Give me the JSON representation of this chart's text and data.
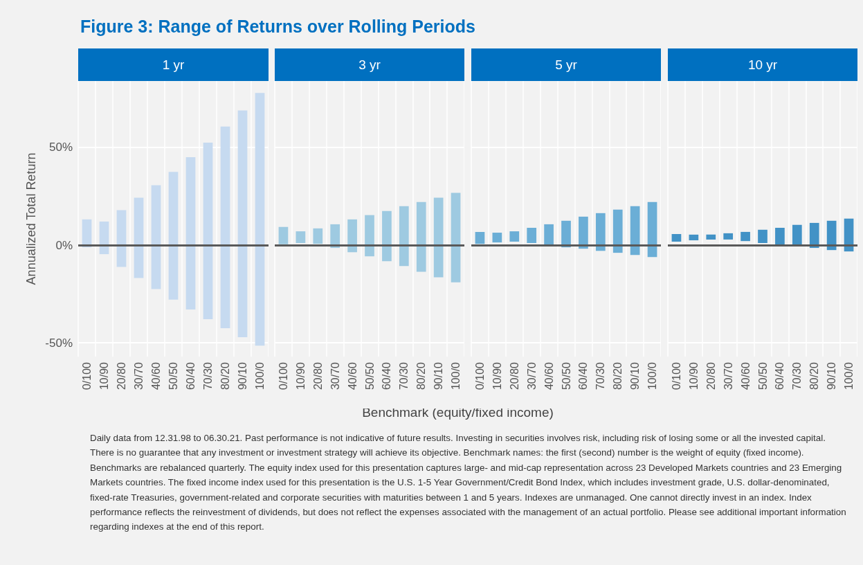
{
  "chart_data": [
    {
      "type": "bar",
      "title": "Figure 3: Range of Returns over Rolling Periods",
      "subtitle": "1 yr",
      "ylabel": "Annualized Total Return",
      "annotations": [
        "Daily data from 12.31.98 to 06.30.21. Past performance is not indicative of future results. Investing in securities involves risk, including risk of losing some or all the invested capital. There is no guarantee that any investment or investment strategy will achieve its objective. Benchmark names: the first (second) number is the weight of equity (fixed income). Benchmarks are rebalanced quarterly. The equity index used for this presentation captures large- and mid-cap representation across 23 Developed Markets countries and 23 Emerging Markets countries. The fixed income index used for this presentation is the U.S. 1-5 Year Government/Credit Bond Index, which includes investment grade, U.S. dollar-denominated, fixed-rate Treasuries, government-related and corporate securities with maturities between 1 and 5 years. Indexes are unmanaged. One cannot directly invest in an index. Index performance reflects the reinvestment of dividends, but does not reflect the expenses associated with the management of an actual portfolio. Please see additional important information regarding indexes at the end of this report."
      ],
      "categories": [
        "0/100",
        "10/90",
        "20/80",
        "30/70",
        "40/60",
        "50/50",
        "60/40",
        "70/30",
        "80/20",
        "90/10",
        "100/0"
      ],
      "base": [
        -1.1,
        -4.6,
        -11.1,
        -16.8,
        -22.5,
        -27.9,
        -32.9,
        -37.9,
        -42.5,
        -47.1,
        -51.4
      ],
      "values": [
        14.3,
        16.7,
        29.0,
        41.1,
        53.2,
        65.4,
        77.9,
        90.4,
        103.2,
        116.0,
        129.3
      ],
      "color": "#c6daf0",
      "ylim": [
        -57,
        84
      ],
      "yticks": [
        {
          "value": -50,
          "label": "-50%"
        },
        {
          "value": 0,
          "label": "0%"
        },
        {
          "value": 50,
          "label": "50%"
        }
      ],
      "grid": true,
      "ref_lines": [
        {
          "axis": "y",
          "value": 0,
          "color": "#595959"
        }
      ]
    },
    {
      "type": "bar",
      "subtitle": "3 yr",
      "xlabel": "Benchmark (equity/fixed income)",
      "categories": [
        "0/100",
        "10/90",
        "20/80",
        "30/70",
        "40/60",
        "50/50",
        "60/40",
        "70/30",
        "80/20",
        "90/10",
        "100/0"
      ],
      "base": [
        0.5,
        1.1,
        0.7,
        -1.4,
        -3.6,
        -5.7,
        -8.2,
        -10.7,
        -13.6,
        -16.4,
        -19.0
      ],
      "values": [
        8.8,
        6.0,
        7.9,
        12.1,
        16.8,
        21.1,
        25.7,
        30.7,
        35.7,
        40.7,
        45.8
      ],
      "color": "#9ecae1",
      "ylim": [
        -57,
        84
      ],
      "yticks": [
        {
          "value": -50,
          "label": null
        },
        {
          "value": 0,
          "label": null
        },
        {
          "value": 50,
          "label": null
        }
      ],
      "grid": true,
      "tick_labels": "x",
      "ref_lines": [
        {
          "axis": "y",
          "value": 0,
          "color": "#595959"
        }
      ]
    },
    {
      "type": "bar",
      "subtitle": "5 yr",
      "categories": [
        "0/100",
        "10/90",
        "20/80",
        "30/70",
        "40/60",
        "50/50",
        "60/40",
        "70/30",
        "80/20",
        "90/10",
        "100/0"
      ],
      "base": [
        0.7,
        1.4,
        1.8,
        1.1,
        0,
        -1.1,
        -1.8,
        -2.9,
        -3.9,
        -5.0,
        -6.1
      ],
      "values": [
        6.1,
        5.0,
        5.3,
        7.8,
        10.7,
        13.6,
        16.4,
        19.3,
        22.1,
        25.0,
        28.2
      ],
      "color": "#6baed6",
      "ylim": [
        -57,
        84
      ],
      "yticks": [
        {
          "value": -50,
          "label": null
        },
        {
          "value": 0,
          "label": null
        },
        {
          "value": 50,
          "label": null
        }
      ],
      "grid": true,
      "tick_labels": "x",
      "ref_lines": [
        {
          "axis": "y",
          "value": 0,
          "color": "#595959"
        }
      ]
    },
    {
      "type": "bar",
      "subtitle": "10 yr",
      "categories": [
        "0/100",
        "10/90",
        "20/80",
        "30/70",
        "40/60",
        "50/50",
        "60/40",
        "70/30",
        "80/20",
        "90/10",
        "100/0"
      ],
      "base": [
        1.8,
        2.5,
        2.9,
        2.9,
        2.1,
        1.1,
        0.4,
        -0.4,
        -1.4,
        -2.5,
        -3.2
      ],
      "values": [
        3.9,
        2.9,
        2.5,
        3.2,
        4.7,
        6.8,
        8.5,
        10.8,
        12.8,
        15.0,
        16.8
      ],
      "color": "#4292c6",
      "ylim": [
        -57,
        84
      ],
      "yticks": [
        {
          "value": -50,
          "label": null
        },
        {
          "value": 0,
          "label": null
        },
        {
          "value": 50,
          "label": null
        }
      ],
      "grid": true,
      "tick_labels": "x",
      "ref_lines": [
        {
          "axis": "y",
          "value": 0,
          "color": "#595959"
        }
      ]
    }
  ]
}
